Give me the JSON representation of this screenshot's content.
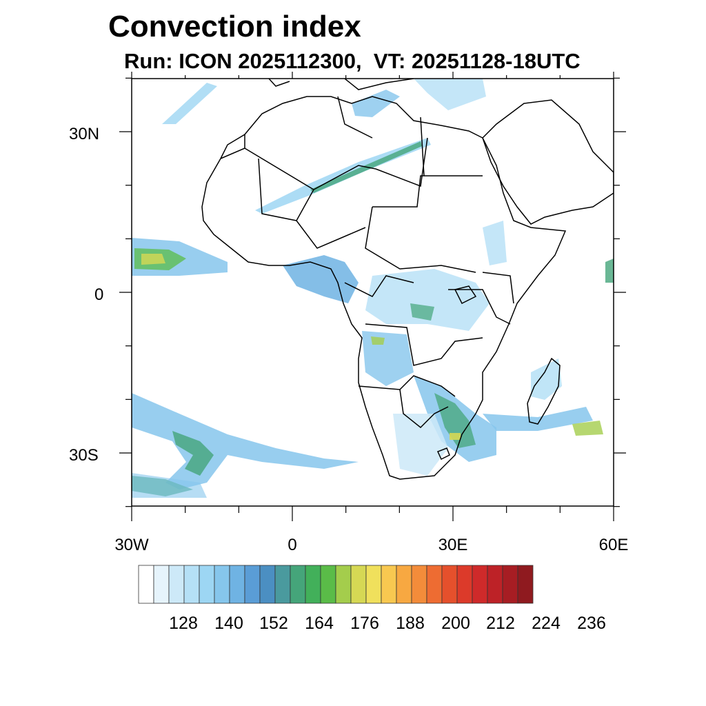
{
  "title": "Convection index",
  "subtitle": "Run: ICON 2025112300,  VT: 20251128-18UTC",
  "axes": {
    "lat_labels": [
      "30N",
      "0",
      "30S"
    ],
    "lon_labels": [
      "30W",
      "0",
      "30E",
      "60E"
    ]
  },
  "colorbar": {
    "labels": [
      "128",
      "140",
      "152",
      "164",
      "176",
      "188",
      "200",
      "212",
      "224",
      "236"
    ],
    "colors": [
      "#ffffff",
      "#e6f4fc",
      "#cde9f8",
      "#b5e0f6",
      "#9dd6f3",
      "#86c6ec",
      "#6fb3e3",
      "#5a9dd6",
      "#4b8fc2",
      "#4a9a9e",
      "#45a57a",
      "#42b05a",
      "#5abc48",
      "#a4cd4c",
      "#d6d854",
      "#f0e05c",
      "#f8c850",
      "#f7a841",
      "#f38c3a",
      "#ee6c32",
      "#e5502c",
      "#dc3a2a",
      "#cf2a2a",
      "#bd2227",
      "#a71d23",
      "#8f1a1f"
    ]
  },
  "region": "Africa",
  "legend_position": "bottom"
}
